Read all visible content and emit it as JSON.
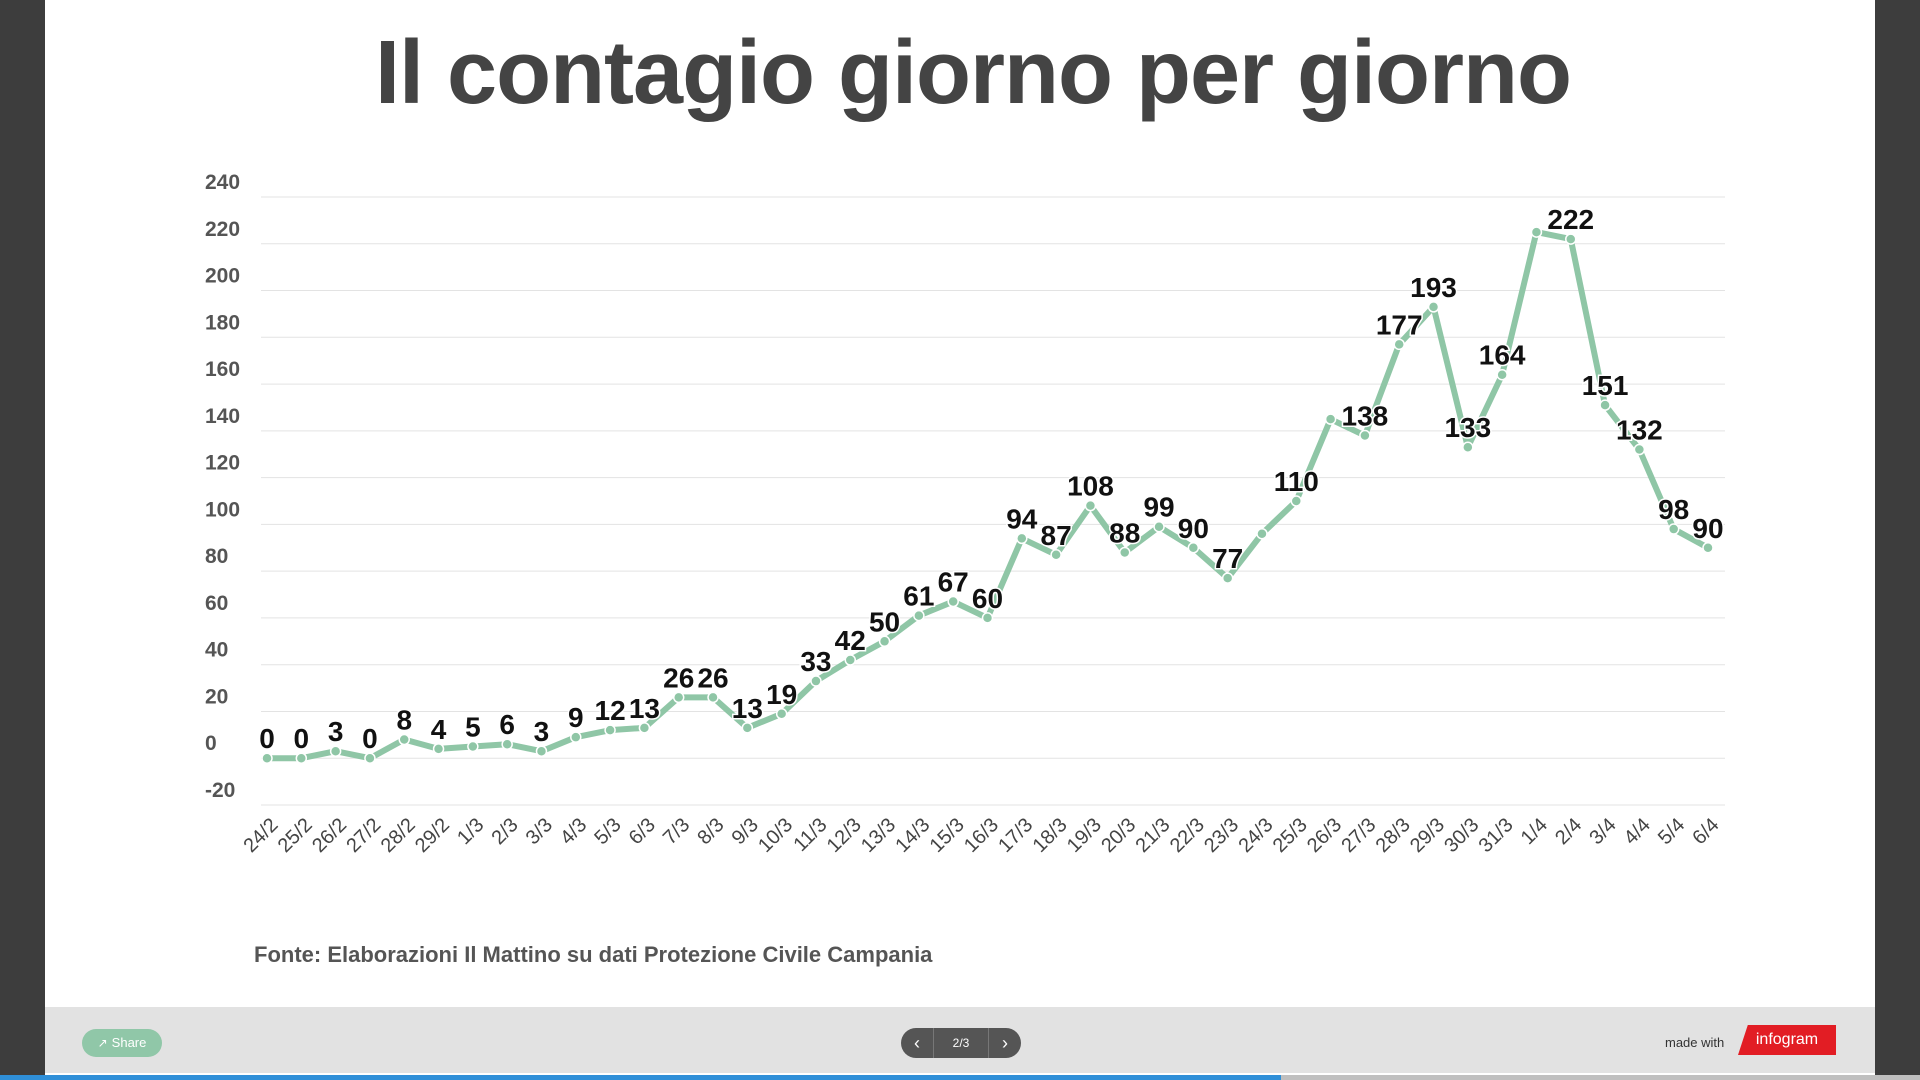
{
  "title": "Il contagio giorno per giorno",
  "source": "Fonte: Elaborazioni Il Mattino su dati Protezione Civile Campania",
  "footer": {
    "share_label": "Share",
    "share_icon": "share-icon",
    "pager_text": "2/3",
    "prev_icon": "chevron-left-icon",
    "next_icon": "chevron-right-icon",
    "made_with": "made with",
    "brand": "infogram",
    "progress": 0.667
  },
  "colors": {
    "line": "#8fc6a6",
    "grid": "#e3e3e3",
    "text": "#444444",
    "brand": "#e21d24",
    "progress": "#2f8fd8"
  },
  "chart_data": {
    "type": "line",
    "title": "Il contagio giorno per giorno",
    "xlabel": "",
    "ylabel": "",
    "ylim": [
      -20,
      240
    ],
    "yticks": [
      -20,
      0,
      20,
      40,
      60,
      80,
      100,
      120,
      140,
      160,
      180,
      200,
      220,
      240
    ],
    "grid": true,
    "categories": [
      "24/2",
      "25/2",
      "26/2",
      "27/2",
      "28/2",
      "29/2",
      "1/3",
      "2/3",
      "3/3",
      "4/3",
      "5/3",
      "6/3",
      "7/3",
      "8/3",
      "9/3",
      "10/3",
      "11/3",
      "12/3",
      "13/3",
      "14/3",
      "15/3",
      "16/3",
      "17/3",
      "18/3",
      "19/3",
      "20/3",
      "21/3",
      "22/3",
      "23/3",
      "24/3",
      "25/3",
      "26/3",
      "27/3",
      "28/3",
      "29/3",
      "30/3",
      "31/3",
      "1/4",
      "2/4",
      "3/4",
      "4/4",
      "5/4",
      "6/4"
    ],
    "series": [
      {
        "values": [
          0,
          0,
          3,
          0,
          8,
          4,
          5,
          6,
          3,
          9,
          12,
          13,
          26,
          26,
          13,
          19,
          33,
          42,
          50,
          61,
          67,
          60,
          94,
          87,
          108,
          88,
          99,
          90,
          77,
          96,
          110,
          145,
          138,
          177,
          193,
          133,
          164,
          225,
          222,
          151,
          132,
          98,
          90
        ],
        "labels": [
          "0",
          "0",
          "3",
          "0",
          "8",
          "4",
          "5",
          "6",
          "3",
          "9",
          "12",
          "13",
          "26",
          "26",
          "13",
          "19",
          "33",
          "42",
          "50",
          "61",
          "67",
          "60",
          "94",
          "87",
          "108",
          "88",
          "99",
          "90",
          "77",
          "",
          "110",
          "",
          "138",
          "177",
          "193",
          "133",
          "164",
          "",
          "222",
          "151",
          "132",
          "98",
          "90"
        ]
      }
    ]
  }
}
